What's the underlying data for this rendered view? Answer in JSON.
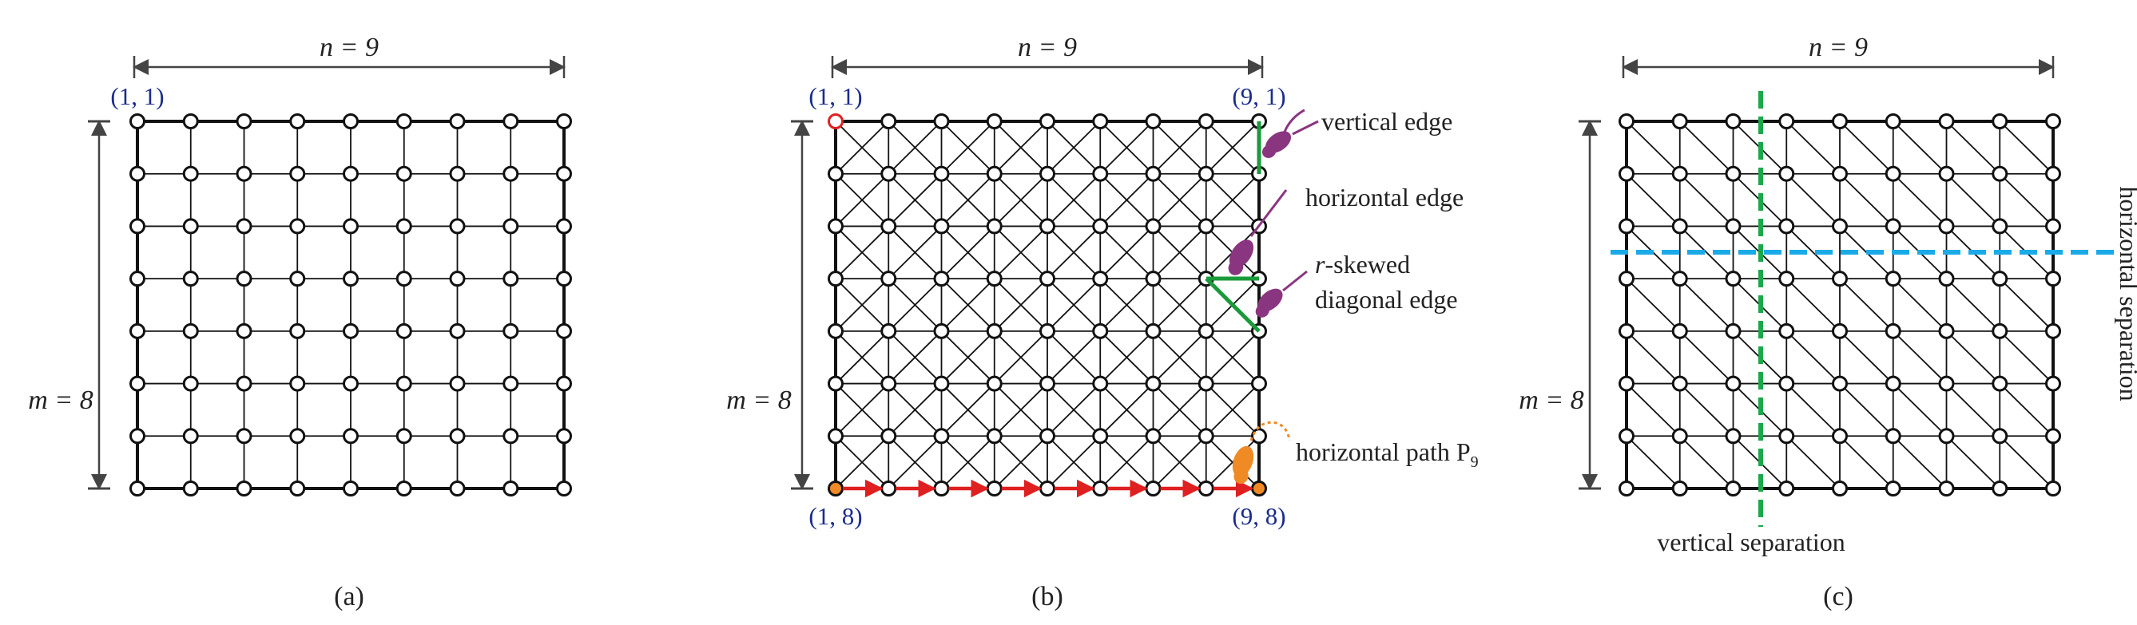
{
  "panels": [
    {
      "id": "a",
      "caption": "(a)",
      "rows": 8,
      "cols": 9,
      "edge_types": [
        "horizontal",
        "vertical"
      ],
      "n_label": "n = 9",
      "m_label": "m = 8",
      "corner_labels": [
        {
          "corner": "top-left",
          "text": "(1, 1)"
        }
      ],
      "annotations": []
    },
    {
      "id": "b",
      "caption": "(b)",
      "rows": 8,
      "cols": 9,
      "edge_types": [
        "horizontal",
        "vertical",
        "diagonal-down",
        "diagonal-up"
      ],
      "n_label": "n = 9",
      "m_label": "m = 8",
      "corner_labels": [
        {
          "corner": "top-left",
          "text": "(1, 1)"
        },
        {
          "corner": "top-right",
          "text": "(9, 1)"
        },
        {
          "corner": "bottom-left",
          "text": "(1, 8)"
        },
        {
          "corner": "bottom-right",
          "text": "(9, 8)"
        }
      ],
      "annotations": [
        {
          "text": "vertical edge"
        },
        {
          "text": "horizontal edge"
        },
        {
          "text_prefix": "r",
          "text": "-skewed"
        },
        {
          "text": "diagonal edge"
        },
        {
          "text": "horizontal path P",
          "subscript": "9"
        }
      ],
      "highlighted_node": {
        "label": "(1, 1)",
        "color": "#e02020"
      },
      "path_color": "#e02020",
      "edge_highlight_color": "#1a9a3a",
      "marker_color": "#8a3580",
      "path_marker_color": "#f08a24"
    },
    {
      "id": "c",
      "caption": "(c)",
      "rows": 8,
      "cols": 9,
      "edge_types": [
        "horizontal",
        "vertical",
        "diagonal-down"
      ],
      "n_label": "n = 9",
      "m_label": "m = 8",
      "corner_labels": [],
      "annotations": [
        {
          "text": "vertical separation"
        },
        {
          "text": "horizontal separation"
        }
      ],
      "vertical_separation_color": "#1aa84a",
      "horizontal_separation_color": "#1aaae8"
    }
  ]
}
